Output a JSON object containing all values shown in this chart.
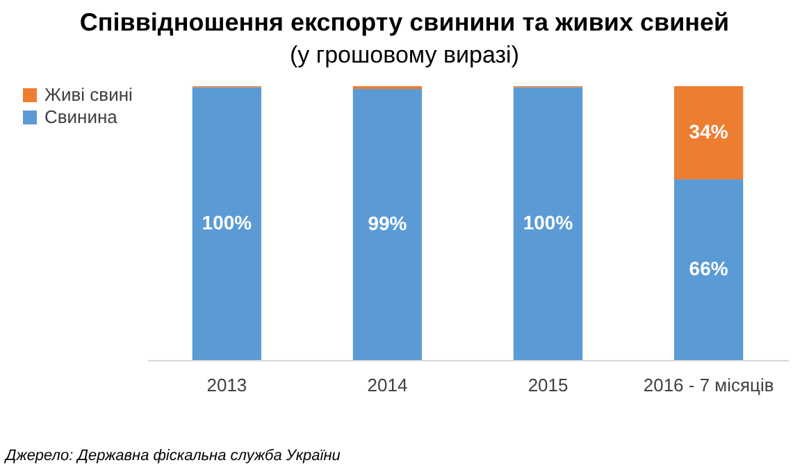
{
  "chart_data": {
    "type": "bar",
    "stacked": true,
    "title": "Співвідношення експорту свинини та живих свиней",
    "subtitle": "(у грошовому виразі)",
    "categories": [
      "2013",
      "2014",
      "2015",
      "2016 - 7 місяців"
    ],
    "series": [
      {
        "name": "Свинина",
        "color": "#5b9bd5",
        "values": [
          99.6,
          99,
          99.6,
          66
        ],
        "value_labels": [
          "100%",
          "99%",
          "100%",
          "66%"
        ]
      },
      {
        "name": "Живі свині",
        "color": "#ed7d31",
        "values": [
          0.4,
          1,
          0.4,
          34
        ],
        "value_labels": [
          null,
          null,
          null,
          "34%"
        ]
      }
    ],
    "legend": "left",
    "grid": false,
    "annotations": [
      "Джерело: Державна фіскальна служба України"
    ]
  }
}
